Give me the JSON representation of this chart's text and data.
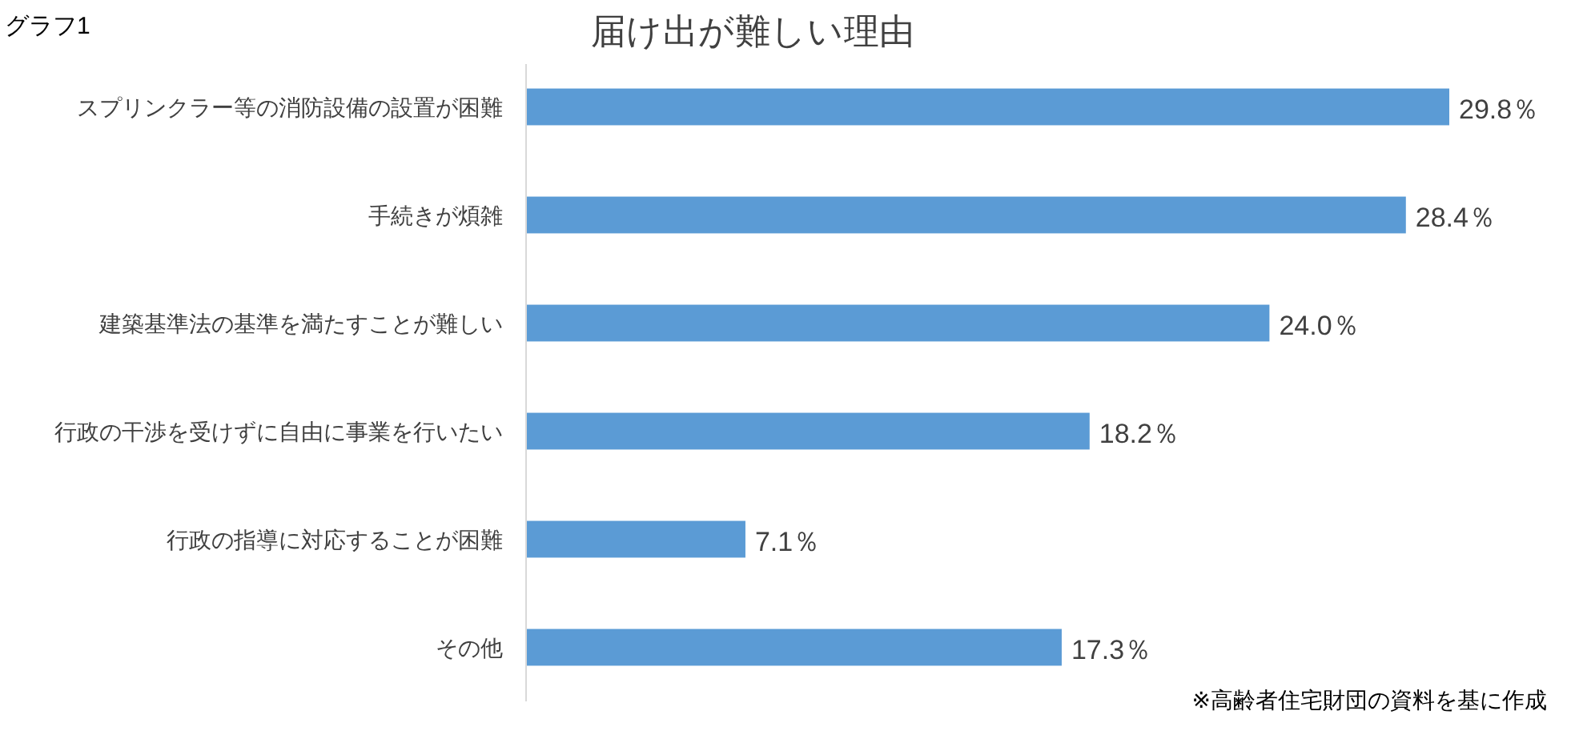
{
  "chart_data": {
    "type": "bar",
    "orientation": "horizontal",
    "title": "届け出が難しい理由",
    "categories": [
      "スプリンクラー等の消防設備の設置が困難",
      "手続きが煩雑",
      "建築基準法の基準を満たすことが難しい",
      "行政の干渉を受けずに自由に事業を行いたい",
      "行政の指導に対応することが困難",
      "その他"
    ],
    "values": [
      29.8,
      28.4,
      24.0,
      18.2,
      7.1,
      17.3
    ],
    "value_labels": [
      "29.8％",
      "28.4％",
      "24.0％",
      "18.2％",
      "7.1％",
      "17.3％"
    ],
    "color": "#5b9bd5",
    "annotations": [
      "グラフ1",
      "※高齢者住宅財団の資料を基に作成"
    ]
  }
}
